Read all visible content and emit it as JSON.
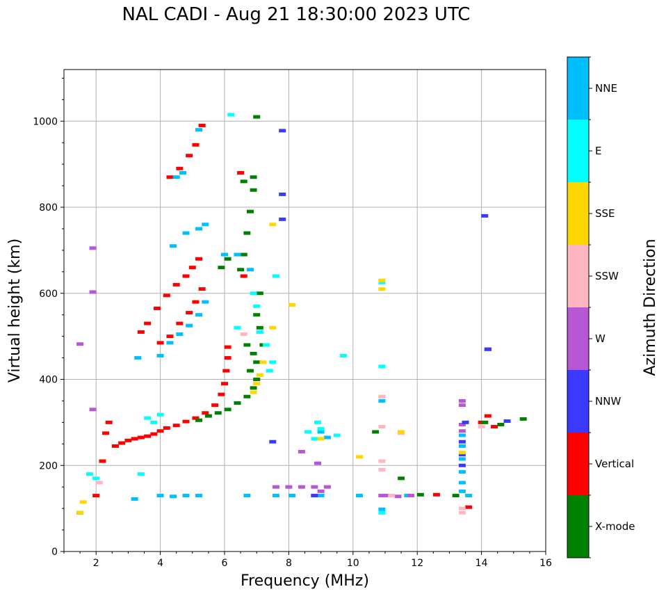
{
  "chart_data": {
    "type": "scatter",
    "title": "NAL CADI - Aug 21 18:30:00 2023 UTC",
    "xlabel": "Frequency (MHz)",
    "ylabel": "Virtual height (km)",
    "xlim": [
      1,
      16
    ],
    "ylim": [
      0,
      1120
    ],
    "xticks": [
      2,
      4,
      6,
      8,
      10,
      12,
      14,
      16
    ],
    "yticks": [
      0,
      200,
      400,
      600,
      800,
      1000
    ],
    "grid": true,
    "colorbar": {
      "label": "Azimuth Direction",
      "categories": [
        {
          "name": "X-mode",
          "color": "#008000"
        },
        {
          "name": "Vertical",
          "color": "#ff0000"
        },
        {
          "name": "NNW",
          "color": "#3a3aff"
        },
        {
          "name": "W",
          "color": "#b757d6"
        },
        {
          "name": "SSW",
          "color": "#ffb6c1"
        },
        {
          "name": "SSE",
          "color": "#ffd700"
        },
        {
          "name": "E",
          "color": "#00ffff"
        },
        {
          "name": "NNE",
          "color": "#00bfff"
        }
      ]
    },
    "series": [
      {
        "name": "Vertical",
        "category": 1,
        "points": [
          [
            2.6,
            245
          ],
          [
            2.8,
            252
          ],
          [
            3.0,
            258
          ],
          [
            3.2,
            262
          ],
          [
            3.4,
            265
          ],
          [
            3.6,
            268
          ],
          [
            3.8,
            273
          ],
          [
            4.0,
            280
          ],
          [
            4.2,
            287
          ],
          [
            4.5,
            293
          ],
          [
            4.8,
            302
          ],
          [
            5.1,
            310
          ],
          [
            5.4,
            322
          ],
          [
            5.7,
            340
          ],
          [
            5.9,
            365
          ],
          [
            6.0,
            390
          ],
          [
            6.05,
            420
          ],
          [
            6.1,
            450
          ],
          [
            6.1,
            475
          ],
          [
            2.3,
            275
          ],
          [
            2.4,
            300
          ],
          [
            4.0,
            485
          ],
          [
            4.3,
            500
          ],
          [
            4.6,
            530
          ],
          [
            4.9,
            555
          ],
          [
            5.1,
            580
          ],
          [
            5.3,
            610
          ],
          [
            3.6,
            530
          ],
          [
            3.9,
            565
          ],
          [
            4.2,
            595
          ],
          [
            4.5,
            620
          ],
          [
            4.8,
            640
          ],
          [
            5.0,
            660
          ],
          [
            5.2,
            680
          ],
          [
            4.3,
            870
          ],
          [
            4.6,
            890
          ],
          [
            4.9,
            920
          ],
          [
            5.1,
            945
          ],
          [
            5.3,
            990
          ],
          [
            14.0,
            300
          ],
          [
            14.2,
            315
          ],
          [
            14.4,
            290
          ],
          [
            14.2,
            470
          ],
          [
            12.6,
            132
          ],
          [
            13.6,
            103
          ],
          [
            2.0,
            130
          ],
          [
            2.2,
            210
          ],
          [
            3.4,
            510
          ],
          [
            6.6,
            640
          ],
          [
            6.5,
            880
          ]
        ]
      },
      {
        "name": "X-mode",
        "category": 0,
        "points": [
          [
            5.2,
            305
          ],
          [
            5.5,
            315
          ],
          [
            5.8,
            322
          ],
          [
            6.1,
            330
          ],
          [
            6.4,
            345
          ],
          [
            6.7,
            360
          ],
          [
            6.9,
            380
          ],
          [
            7.0,
            400
          ],
          [
            6.5,
            655
          ],
          [
            6.6,
            690
          ],
          [
            6.7,
            740
          ],
          [
            6.8,
            790
          ],
          [
            6.9,
            840
          ],
          [
            6.6,
            860
          ],
          [
            6.9,
            870
          ],
          [
            7.0,
            1010
          ],
          [
            5.9,
            660
          ],
          [
            6.1,
            680
          ],
          [
            6.7,
            480
          ],
          [
            6.9,
            460
          ],
          [
            7.0,
            440
          ],
          [
            7.1,
            520
          ],
          [
            7.0,
            550
          ],
          [
            7.1,
            600
          ],
          [
            6.8,
            420
          ],
          [
            7.2,
            480
          ],
          [
            13.2,
            130
          ],
          [
            14.1,
            300
          ],
          [
            14.6,
            295
          ],
          [
            15.3,
            308
          ],
          [
            10.7,
            278
          ],
          [
            11.5,
            170
          ],
          [
            12.1,
            132
          ],
          [
            1.5,
            90
          ]
        ]
      },
      {
        "name": "NNE",
        "category": 7,
        "points": [
          [
            4.0,
            455
          ],
          [
            4.3,
            485
          ],
          [
            4.6,
            505
          ],
          [
            4.9,
            525
          ],
          [
            5.2,
            550
          ],
          [
            5.4,
            580
          ],
          [
            4.8,
            740
          ],
          [
            5.2,
            750
          ],
          [
            5.4,
            760
          ],
          [
            4.5,
            870
          ],
          [
            5.2,
            980
          ],
          [
            4.0,
            130
          ],
          [
            4.4,
            128
          ],
          [
            4.8,
            130
          ],
          [
            5.2,
            130
          ],
          [
            3.2,
            122
          ],
          [
            6.7,
            130
          ],
          [
            7.6,
            130
          ],
          [
            8.1,
            130
          ],
          [
            8.8,
            130
          ],
          [
            9.0,
            130
          ],
          [
            10.2,
            130
          ],
          [
            10.9,
            130
          ],
          [
            11.7,
            130
          ],
          [
            9.0,
            278
          ],
          [
            9.2,
            265
          ],
          [
            10.9,
            350
          ],
          [
            13.4,
            270
          ],
          [
            13.4,
            245
          ],
          [
            13.4,
            215
          ],
          [
            13.4,
            185
          ],
          [
            13.4,
            160
          ],
          [
            13.4,
            140
          ],
          [
            13.6,
            130
          ],
          [
            10.9,
            98
          ],
          [
            4.7,
            880
          ],
          [
            6.0,
            690
          ],
          [
            6.4,
            690
          ],
          [
            6.8,
            655
          ],
          [
            3.3,
            450
          ],
          [
            4.4,
            710
          ]
        ]
      },
      {
        "name": "E",
        "category": 6,
        "points": [
          [
            8.6,
            278
          ],
          [
            8.8,
            262
          ],
          [
            9.0,
            285
          ],
          [
            8.9,
            300
          ],
          [
            9.5,
            270
          ],
          [
            10.9,
            625
          ],
          [
            10.9,
            430
          ],
          [
            10.9,
            360
          ],
          [
            7.5,
            440
          ],
          [
            7.4,
            420
          ],
          [
            7.3,
            480
          ],
          [
            7.1,
            510
          ],
          [
            7.0,
            570
          ],
          [
            6.9,
            600
          ],
          [
            7.6,
            640
          ],
          [
            4.0,
            318
          ],
          [
            3.6,
            310
          ],
          [
            3.8,
            300
          ],
          [
            1.8,
            180
          ],
          [
            2.0,
            170
          ],
          [
            9.7,
            455
          ],
          [
            6.4,
            520
          ],
          [
            6.2,
            1015
          ],
          [
            10.9,
            90
          ],
          [
            3.4,
            180
          ]
        ]
      },
      {
        "name": "W",
        "category": 3,
        "points": [
          [
            7.6,
            150
          ],
          [
            8.0,
            150
          ],
          [
            8.4,
            150
          ],
          [
            8.8,
            150
          ],
          [
            9.0,
            140
          ],
          [
            9.2,
            150
          ],
          [
            10.9,
            130
          ],
          [
            11.1,
            130
          ],
          [
            11.4,
            128
          ],
          [
            11.8,
            130
          ],
          [
            13.4,
            350
          ],
          [
            13.4,
            340
          ],
          [
            13.4,
            280
          ],
          [
            8.9,
            205
          ],
          [
            8.4,
            232
          ],
          [
            1.5,
            482
          ],
          [
            1.9,
            603
          ],
          [
            1.9,
            705
          ],
          [
            1.9,
            330
          ],
          [
            13.4,
            295
          ]
        ]
      },
      {
        "name": "NNW",
        "category": 2,
        "points": [
          [
            14.1,
            780
          ],
          [
            13.4,
            255
          ],
          [
            13.4,
            225
          ],
          [
            13.4,
            200
          ],
          [
            7.8,
            978
          ],
          [
            7.8,
            772
          ],
          [
            7.8,
            830
          ],
          [
            7.5,
            255
          ],
          [
            14.2,
            470
          ],
          [
            14.8,
            303
          ],
          [
            13.5,
            300
          ],
          [
            8.8,
            130
          ]
        ]
      },
      {
        "name": "SSW",
        "category": 4,
        "points": [
          [
            10.9,
            190
          ],
          [
            10.9,
            210
          ],
          [
            10.9,
            290
          ],
          [
            10.9,
            360
          ],
          [
            11.5,
            275
          ],
          [
            13.4,
            100
          ],
          [
            13.4,
            90
          ],
          [
            11.2,
            130
          ],
          [
            2.1,
            160
          ],
          [
            6.6,
            505
          ],
          [
            14.0,
            290
          ]
        ]
      },
      {
        "name": "SSE",
        "category": 5,
        "points": [
          [
            7.0,
            390
          ],
          [
            6.9,
            370
          ],
          [
            7.1,
            410
          ],
          [
            7.2,
            440
          ],
          [
            7.5,
            520
          ],
          [
            8.1,
            573
          ],
          [
            10.2,
            220
          ],
          [
            9.0,
            262
          ],
          [
            11.5,
            278
          ],
          [
            10.9,
            630
          ],
          [
            10.9,
            610
          ],
          [
            13.4,
            230
          ],
          [
            7.5,
            760
          ],
          [
            1.6,
            115
          ],
          [
            1.5,
            90
          ]
        ]
      }
    ]
  }
}
